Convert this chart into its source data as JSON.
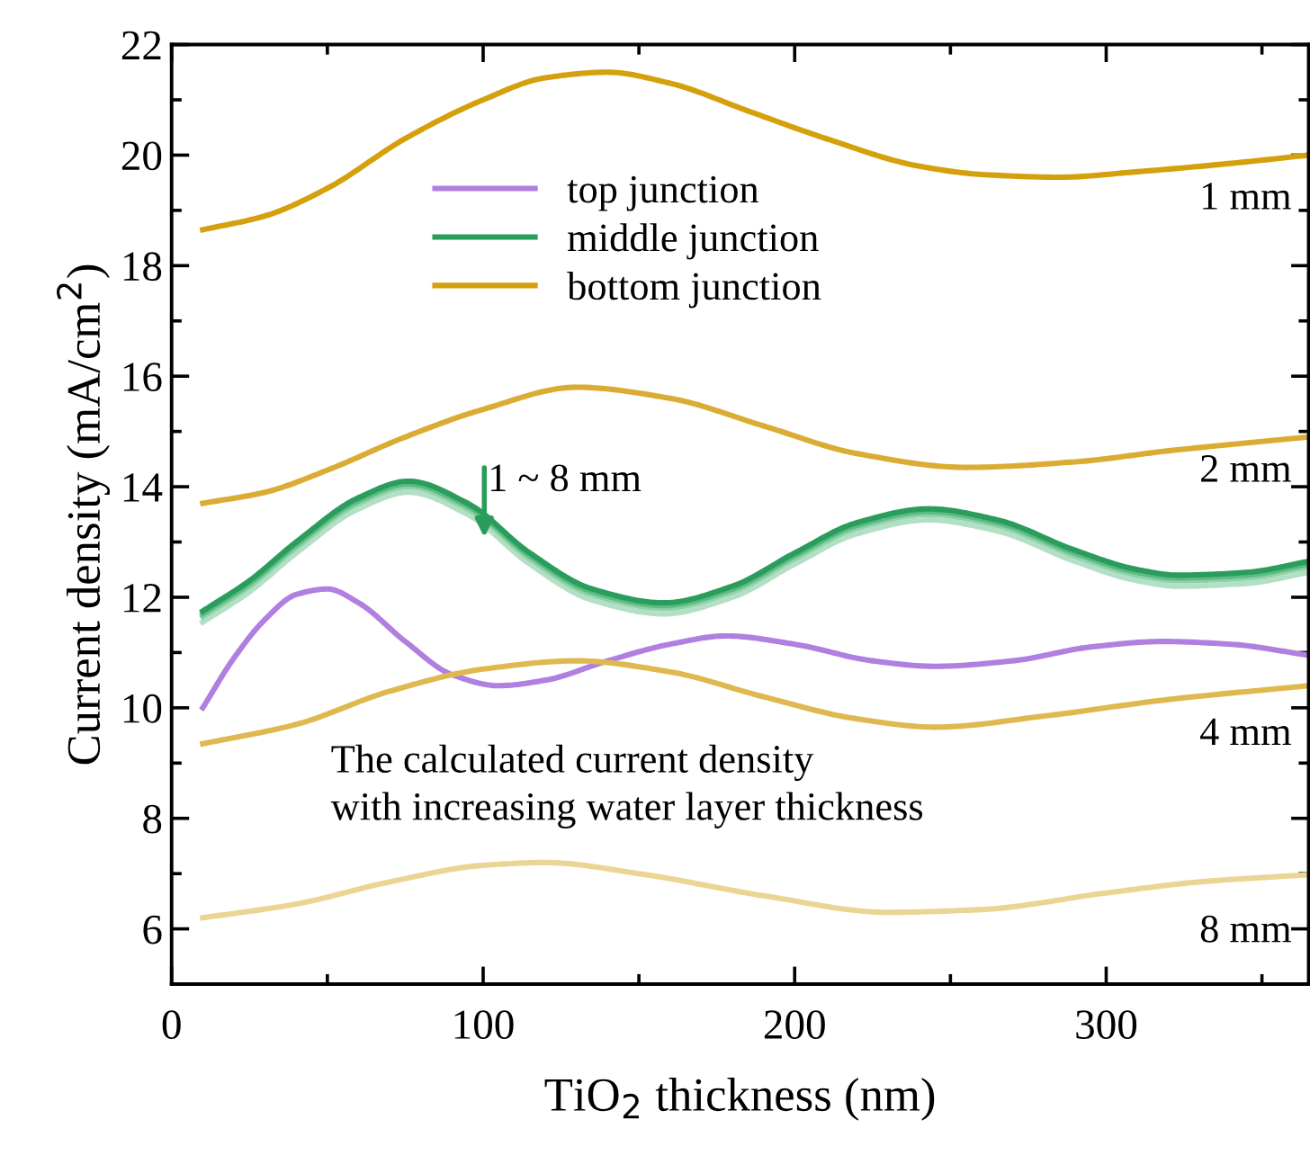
{
  "chart_data": {
    "type": "line",
    "xlabel": "TiO$_{2}$ thickness (nm)",
    "ylabel": "Current density (mA/cm$^{2}$)",
    "xlim": [
      0,
      365
    ],
    "ylim": [
      5,
      22
    ],
    "xticks": [
      0,
      {
        "value": 50,
        "label": null
      },
      100,
      {
        "value": 150,
        "label": null
      },
      200,
      {
        "value": 250,
        "label": null
      },
      300,
      {
        "value": 350,
        "label": null
      }
    ],
    "yticks": [
      {
        "value": 5,
        "label": null
      },
      6,
      {
        "value": 7,
        "label": null
      },
      8,
      {
        "value": 9,
        "label": null
      },
      10,
      {
        "value": 11,
        "label": null
      },
      12,
      {
        "value": 13,
        "label": null
      },
      14,
      {
        "value": 15,
        "label": null
      },
      16,
      {
        "value": 17,
        "label": null
      },
      18,
      {
        "value": 19,
        "label": null
      },
      20,
      {
        "value": 21,
        "label": null
      },
      22
    ],
    "grid": false,
    "legend": "top",
    "line_style": "solid",
    "marker": "none",
    "series": [
      {
        "name": "top junction",
        "color": "#b07fe0",
        "x": [
          10,
          20,
          30,
          40,
          50,
          60,
          75,
          90,
          105,
          120,
          140,
          160,
          178,
          200,
          225,
          245,
          270,
          295,
          318,
          340,
          365
        ],
        "values": [
          10.0,
          10.9,
          11.6,
          12.05,
          12.15,
          11.9,
          11.2,
          10.6,
          10.4,
          10.5,
          10.85,
          11.15,
          11.3,
          11.15,
          10.85,
          10.75,
          10.85,
          11.1,
          11.2,
          11.15,
          10.95
        ]
      },
      {
        "color": "#b3e0c4",
        "x": [
          10,
          25,
          40,
          60,
          76,
          95,
          115,
          135,
          158,
          180,
          200,
          220,
          243,
          265,
          290,
          310,
          323,
          345,
          365
        ],
        "values": [
          11.55,
          12.1,
          12.8,
          13.6,
          13.9,
          13.5,
          12.6,
          11.95,
          11.7,
          12.0,
          12.6,
          13.15,
          13.4,
          13.2,
          12.65,
          12.3,
          12.2,
          12.25,
          12.45
        ]
      },
      {
        "color": "#8fd1a9",
        "x": [
          10,
          25,
          40,
          60,
          76,
          95,
          115,
          135,
          158,
          180,
          200,
          220,
          243,
          265,
          290,
          310,
          323,
          345,
          365
        ],
        "values": [
          11.65,
          12.2,
          12.9,
          13.7,
          14.0,
          13.6,
          12.7,
          12.05,
          11.8,
          12.1,
          12.7,
          13.25,
          13.5,
          13.3,
          12.75,
          12.4,
          12.3,
          12.35,
          12.55
        ]
      },
      {
        "color": "#5dbb85",
        "x": [
          10,
          25,
          40,
          60,
          76,
          95,
          115,
          135,
          158,
          180,
          200,
          220,
          243,
          265,
          290,
          310,
          323,
          345,
          365
        ],
        "values": [
          11.7,
          12.25,
          12.95,
          13.75,
          14.05,
          13.65,
          12.75,
          12.1,
          11.85,
          12.15,
          12.75,
          13.3,
          13.55,
          13.35,
          12.8,
          12.45,
          12.35,
          12.4,
          12.6
        ]
      },
      {
        "name": "middle junction",
        "color": "#2a9d5c",
        "x": [
          10,
          25,
          40,
          60,
          76,
          95,
          115,
          135,
          158,
          180,
          200,
          220,
          243,
          265,
          290,
          310,
          323,
          345,
          365
        ],
        "values": [
          11.75,
          12.3,
          13.0,
          13.8,
          14.1,
          13.7,
          12.8,
          12.15,
          11.9,
          12.2,
          12.8,
          13.35,
          13.6,
          13.4,
          12.85,
          12.5,
          12.4,
          12.45,
          12.65
        ]
      },
      {
        "name": "bottom junction",
        "color": "#d4a00c",
        "x": [
          10,
          30,
          50,
          75,
          100,
          120,
          140,
          160,
          185,
          210,
          240,
          260,
          285,
          310,
          340,
          365
        ],
        "values": [
          18.65,
          18.9,
          19.4,
          20.3,
          21.0,
          21.4,
          21.5,
          21.3,
          20.8,
          20.3,
          19.8,
          19.65,
          19.6,
          19.7,
          19.85,
          20.0
        ]
      },
      {
        "color": "#dbac33",
        "x": [
          10,
          30,
          50,
          75,
          100,
          130,
          160,
          190,
          220,
          255,
          290,
          320,
          365
        ],
        "values": [
          13.7,
          13.9,
          14.3,
          14.9,
          15.4,
          15.8,
          15.6,
          15.1,
          14.6,
          14.35,
          14.45,
          14.65,
          14.9
        ]
      },
      {
        "color": "#e0b850",
        "x": [
          10,
          40,
          70,
          100,
          130,
          160,
          190,
          220,
          245,
          280,
          320,
          365
        ],
        "values": [
          9.35,
          9.7,
          10.3,
          10.7,
          10.85,
          10.65,
          10.2,
          9.8,
          9.65,
          9.85,
          10.15,
          10.4
        ]
      },
      {
        "color": "#ecd594",
        "x": [
          10,
          40,
          70,
          100,
          120,
          150,
          190,
          230,
          260,
          300,
          330,
          365
        ],
        "values": [
          6.2,
          6.45,
          6.85,
          7.15,
          7.2,
          7.0,
          6.6,
          6.3,
          6.35,
          6.65,
          6.85,
          6.98
        ]
      }
    ],
    "annotations": [
      "1 mm",
      "2 mm",
      "4 mm",
      "8 mm",
      "1 ~ 8 mm",
      "The calculated current density\nwith increasing water layer thickness"
    ]
  }
}
